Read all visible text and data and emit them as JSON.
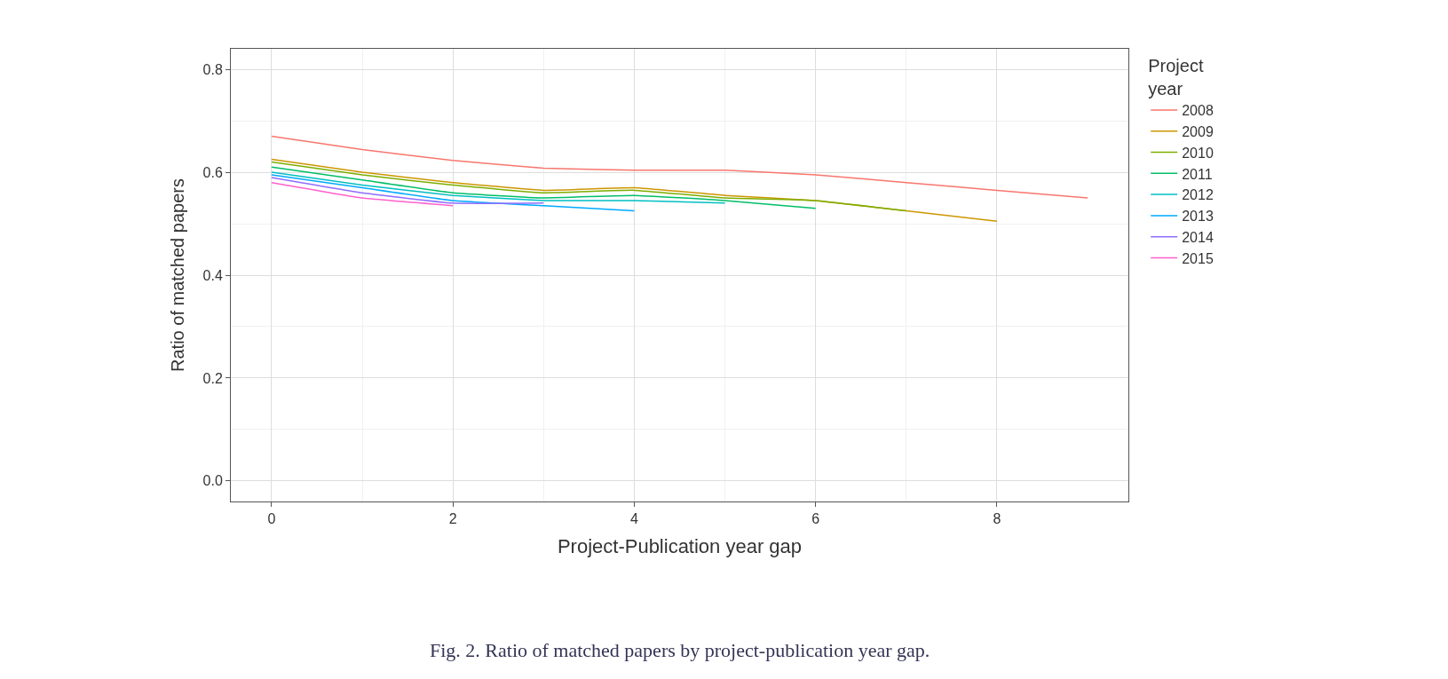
{
  "chart_data": {
    "type": "line",
    "xlabel": "Project-Publication year gap",
    "ylabel": "Ratio of matched papers",
    "legend_title": "Project year",
    "x": [
      0,
      1,
      2,
      3,
      4,
      5,
      6,
      7,
      8,
      9
    ],
    "series": [
      {
        "name": "2008",
        "color": "#f8766d",
        "values": [
          0.67,
          0.644,
          0.623,
          0.608,
          0.604,
          0.604,
          0.595,
          0.58,
          0.565,
          0.55
        ]
      },
      {
        "name": "2009",
        "color": "#cd9600",
        "values": [
          0.625,
          0.6,
          0.58,
          0.565,
          0.57,
          0.555,
          0.545,
          0.525,
          0.505,
          null
        ]
      },
      {
        "name": "2010",
        "color": "#7cae00",
        "values": [
          0.62,
          0.595,
          0.575,
          0.56,
          0.565,
          0.55,
          0.545,
          0.525,
          null,
          null
        ]
      },
      {
        "name": "2011",
        "color": "#00be67",
        "values": [
          0.61,
          0.585,
          0.56,
          0.55,
          0.555,
          0.545,
          0.53,
          null,
          null,
          null
        ]
      },
      {
        "name": "2012",
        "color": "#00bfc4",
        "values": [
          0.6,
          0.575,
          0.555,
          0.545,
          0.545,
          0.54,
          null,
          null,
          null,
          null
        ]
      },
      {
        "name": "2013",
        "color": "#00a9ff",
        "values": [
          0.595,
          0.57,
          0.545,
          0.535,
          0.525,
          null,
          null,
          null,
          null,
          null
        ]
      },
      {
        "name": "2014",
        "color": "#8f6cff",
        "values": [
          0.59,
          0.56,
          0.54,
          0.54,
          null,
          null,
          null,
          null,
          null,
          null
        ]
      },
      {
        "name": "2015",
        "color": "#ff61cc",
        "values": [
          0.58,
          0.55,
          0.535,
          null,
          null,
          null,
          null,
          null,
          null,
          null
        ]
      }
    ],
    "xlim": [
      -0.45,
      9.45
    ],
    "xticks": [
      0,
      2,
      4,
      6,
      8
    ],
    "ylim": [
      -0.04,
      0.84
    ],
    "yticks": [
      {
        "value": 0,
        "label": "0.0"
      },
      {
        "value": 0.2,
        "label": "0.2"
      },
      {
        "value": 0.4,
        "label": "0.4"
      },
      {
        "value": 0.6,
        "label": "0.6"
      },
      {
        "value": 0.8,
        "label": "0.8"
      }
    ],
    "grid": true,
    "legend": "right",
    "marker": "none",
    "line_style": "solid",
    "annotations": [
      "Fig. 2. Ratio of matched papers by project-publication year gap."
    ]
  }
}
